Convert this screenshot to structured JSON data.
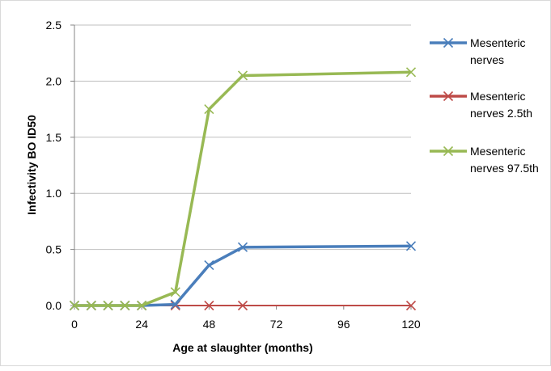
{
  "chart_data": {
    "type": "line",
    "title": "",
    "xlabel": "Age at slaughter (months)",
    "ylabel": "Infectivity BO ID50",
    "xlim": [
      0,
      120
    ],
    "ylim": [
      0,
      2.5
    ],
    "x_ticks": [
      "0",
      "24",
      "48",
      "72",
      "96",
      "120"
    ],
    "y_ticks": [
      "0.0",
      "0.5",
      "1.0",
      "1.5",
      "2.0",
      "2.5"
    ],
    "grid": "horizontal",
    "legend_position": "right",
    "series": [
      {
        "name": "Mesenteric nerves",
        "legend_lines": [
          "Mesenteric",
          "nerves"
        ],
        "color": "#4a7ebb",
        "marker": "x",
        "x": [
          0,
          6,
          12,
          18,
          24,
          36,
          48,
          60,
          120
        ],
        "y": [
          0,
          0,
          0,
          0,
          0,
          0.01,
          0.36,
          0.52,
          0.53
        ]
      },
      {
        "name": "Mesenteric nerves 2.5th",
        "legend_lines": [
          "Mesenteric",
          "nerves 2.5th"
        ],
        "color": "#be4b48",
        "marker": "x",
        "x": [
          0,
          6,
          12,
          18,
          24,
          36,
          48,
          60,
          120
        ],
        "y": [
          0,
          0,
          0,
          0,
          0,
          0,
          0,
          0,
          0
        ]
      },
      {
        "name": "Mesenteric nerves 97.5th",
        "legend_lines": [
          "Mesenteric",
          "nerves 97.5th"
        ],
        "color": "#98b954",
        "marker": "x",
        "x": [
          0,
          6,
          12,
          18,
          24,
          36,
          48,
          60,
          120
        ],
        "y": [
          0,
          0,
          0,
          0,
          0,
          0.12,
          1.75,
          2.05,
          2.08
        ]
      }
    ]
  }
}
